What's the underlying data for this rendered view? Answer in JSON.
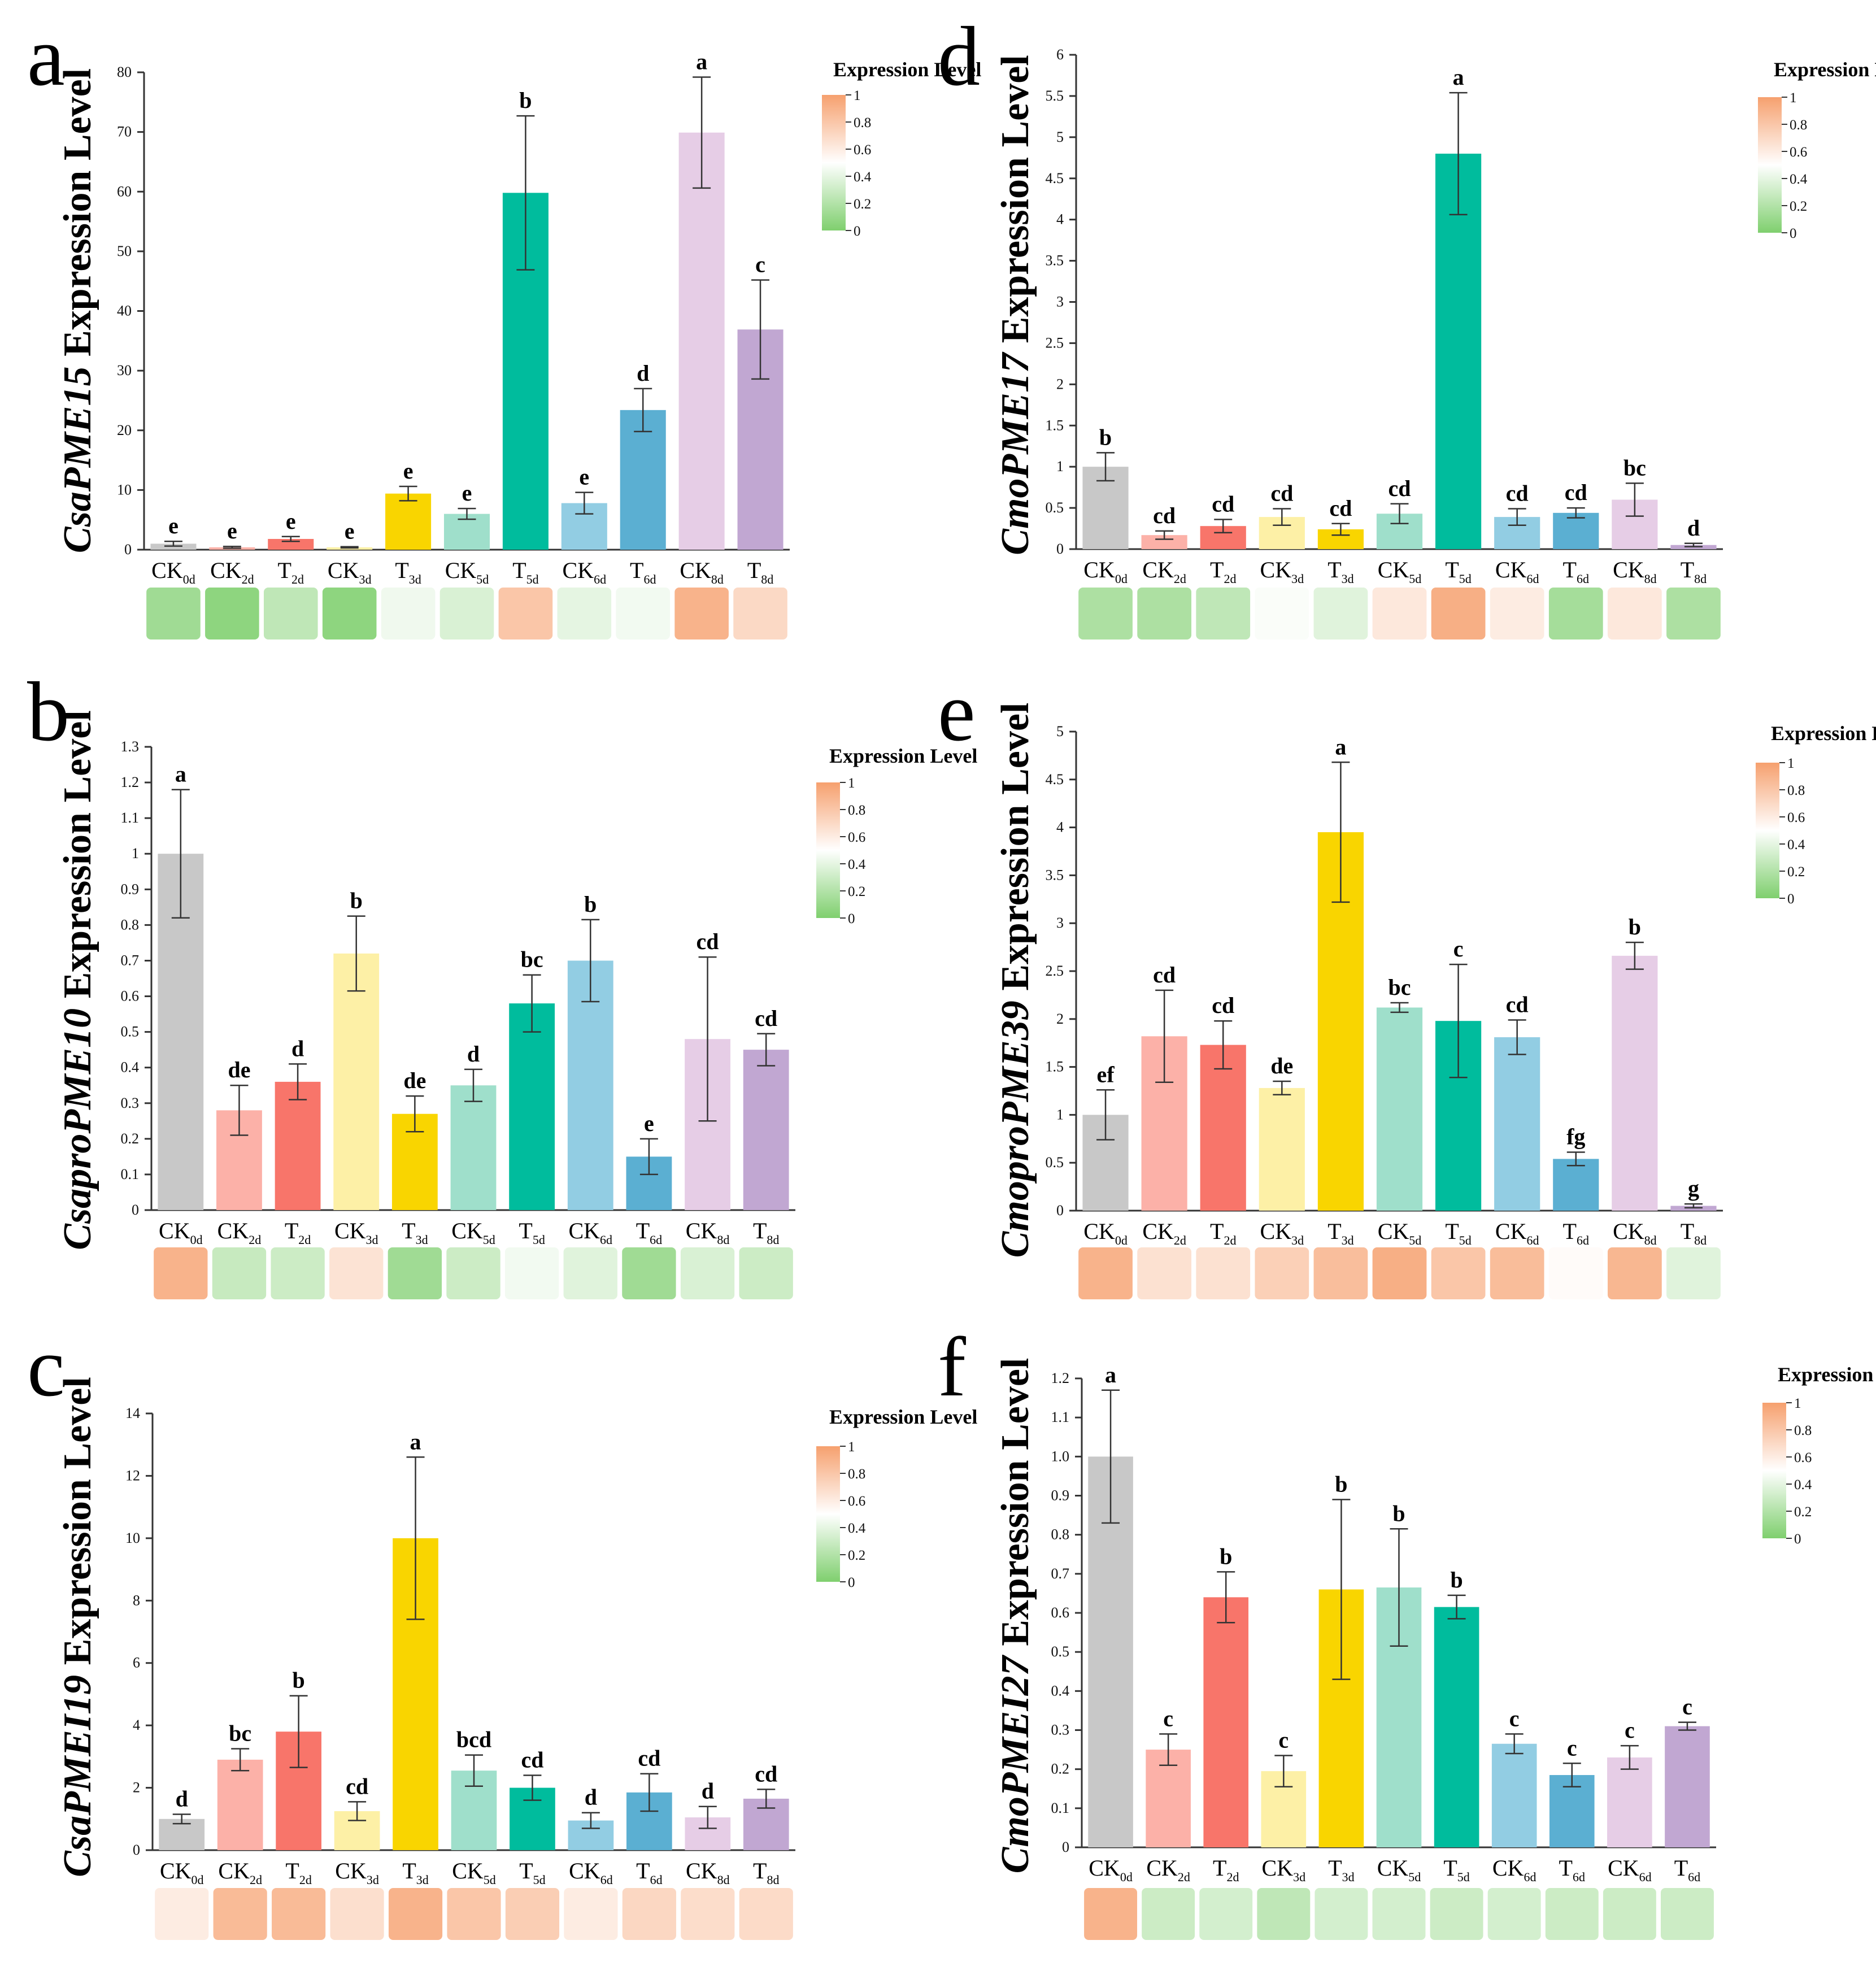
{
  "colors": {
    "bars": [
      "#c8c8c8",
      "#fcb1a8",
      "#f8756a",
      "#fdf0a6",
      "#f9d500",
      "#9fdfcb",
      "#00bc9d",
      "#92cde3",
      "#5bafd2",
      "#e6cde6",
      "#c1a7d2"
    ],
    "heat_low": "#7fcf6e",
    "heat_mid": "#ffffff",
    "heat_high": "#f6a06e",
    "axis": "#333333"
  },
  "legend_scale": {
    "title": "Expression Level",
    "ticks": [
      "1",
      "0.8",
      "0.6",
      "0.4",
      "0.2",
      "0"
    ]
  },
  "chart_data": [
    {
      "panel": "a",
      "type": "bar",
      "ylabel_gene": "CsaPME15",
      "ylabel_suffix": " Expression  Level",
      "ylim": [
        0,
        80
      ],
      "yticks": [
        "0",
        "10",
        "20",
        "30",
        "40",
        "50",
        "60",
        "70",
        "80"
      ],
      "categories": [
        [
          "CK",
          "0d"
        ],
        [
          "CK",
          "2d"
        ],
        [
          "T",
          "2d"
        ],
        [
          "CK",
          "3d"
        ],
        [
          "T",
          "3d"
        ],
        [
          "CK",
          "5d"
        ],
        [
          "T",
          "5d"
        ],
        [
          "CK",
          "6d"
        ],
        [
          "T",
          "6d"
        ],
        [
          "CK",
          "8d"
        ],
        [
          "T",
          "8d"
        ]
      ],
      "values": [
        1.0,
        0.4,
        1.8,
        0.4,
        9.4,
        6.0,
        59.8,
        7.8,
        23.4,
        69.9,
        36.9
      ],
      "errors": [
        0.4,
        0.15,
        0.4,
        0.1,
        1.2,
        0.9,
        12.9,
        1.8,
        3.6,
        9.3,
        8.3
      ],
      "letters": [
        "e",
        "e",
        "e",
        "e",
        "e",
        "e",
        "b",
        "e",
        "d",
        "a",
        "c"
      ],
      "heat": [
        0.13,
        0.06,
        0.25,
        0.06,
        0.44,
        0.35,
        0.8,
        0.4,
        0.45,
        0.9,
        0.7
      ]
    },
    {
      "panel": "b",
      "type": "bar",
      "ylabel_gene": "CsaproPME10",
      "ylabel_suffix": " Expression  Level",
      "ylim": [
        0,
        1.3
      ],
      "yticks": [
        "0",
        "0.1",
        "0.2",
        "0.3",
        "0.4",
        "0.5",
        "0.6",
        "0.7",
        "0.8",
        "0.9",
        "1",
        "1.1",
        "1.2",
        "1.3"
      ],
      "categories": [
        [
          "CK",
          "0d"
        ],
        [
          "CK",
          "2d"
        ],
        [
          "T",
          "2d"
        ],
        [
          "CK",
          "3d"
        ],
        [
          "T",
          "3d"
        ],
        [
          "CK",
          "5d"
        ],
        [
          "T",
          "5d"
        ],
        [
          "CK",
          "6d"
        ],
        [
          "T",
          "6d"
        ],
        [
          "CK",
          "8d"
        ],
        [
          "T",
          "8d"
        ]
      ],
      "values": [
        1.0,
        0.28,
        0.36,
        0.72,
        0.27,
        0.35,
        0.58,
        0.7,
        0.15,
        0.48,
        0.45
      ],
      "errors": [
        0.18,
        0.07,
        0.05,
        0.105,
        0.05,
        0.045,
        0.08,
        0.115,
        0.05,
        0.23,
        0.045
      ],
      "letters": [
        "a",
        "de",
        "d",
        "b",
        "de",
        "d",
        "bc",
        "b",
        "e",
        "cd",
        "cd"
      ],
      "heat": [
        0.9,
        0.28,
        0.3,
        0.65,
        0.13,
        0.3,
        0.45,
        0.38,
        0.13,
        0.35,
        0.3
      ]
    },
    {
      "panel": "c",
      "type": "bar",
      "ylabel_gene": "CsaPMEI19",
      "ylabel_suffix": " Expression  Level",
      "ylim": [
        0,
        14
      ],
      "yticks": [
        "0",
        "2",
        "4",
        "6",
        "8",
        "10",
        "12",
        "14"
      ],
      "categories": [
        [
          "CK",
          "0d"
        ],
        [
          "CK",
          "2d"
        ],
        [
          "T",
          "2d"
        ],
        [
          "CK",
          "3d"
        ],
        [
          "T",
          "3d"
        ],
        [
          "CK",
          "5d"
        ],
        [
          "T",
          "5d"
        ],
        [
          "CK",
          "6d"
        ],
        [
          "T",
          "6d"
        ],
        [
          "CK",
          "8d"
        ],
        [
          "T",
          "8d"
        ]
      ],
      "values": [
        1.0,
        2.9,
        3.8,
        1.25,
        10.0,
        2.55,
        2.0,
        0.95,
        1.85,
        1.05,
        1.65
      ],
      "errors": [
        0.15,
        0.35,
        1.15,
        0.3,
        2.6,
        0.5,
        0.4,
        0.25,
        0.6,
        0.35,
        0.3
      ],
      "letters": [
        "d",
        "bc",
        "b",
        "cd",
        "a",
        "bcd",
        "cd",
        "d",
        "cd",
        "d",
        "cd"
      ],
      "heat": [
        0.6,
        0.86,
        0.86,
        0.67,
        0.9,
        0.8,
        0.76,
        0.6,
        0.71,
        0.68,
        0.69
      ]
    },
    {
      "panel": "d",
      "type": "bar",
      "ylabel_gene": "CmoPME17",
      "ylabel_suffix": " Expression  Level",
      "ylim": [
        0,
        6
      ],
      "yticks": [
        "0",
        "0.5",
        "1",
        "1.5",
        "2",
        "2.5",
        "3",
        "3.5",
        "4",
        "4.5",
        "5",
        "5.5",
        "6"
      ],
      "categories": [
        [
          "CK",
          "0d"
        ],
        [
          "CK",
          "2d"
        ],
        [
          "T",
          "2d"
        ],
        [
          "CK",
          "3d"
        ],
        [
          "T",
          "3d"
        ],
        [
          "CK",
          "5d"
        ],
        [
          "T",
          "5d"
        ],
        [
          "CK",
          "6d"
        ],
        [
          "T",
          "6d"
        ],
        [
          "CK",
          "8d"
        ],
        [
          "T",
          "8d"
        ]
      ],
      "values": [
        1.0,
        0.17,
        0.28,
        0.39,
        0.24,
        0.43,
        4.8,
        0.39,
        0.44,
        0.6,
        0.05
      ],
      "errors": [
        0.17,
        0.05,
        0.08,
        0.1,
        0.07,
        0.12,
        0.74,
        0.1,
        0.06,
        0.2,
        0.02
      ],
      "letters": [
        "b",
        "cd",
        "cd",
        "cd",
        "cd",
        "cd",
        "a",
        "cd",
        "cd",
        "bc",
        "d"
      ],
      "heat": [
        0.18,
        0.18,
        0.25,
        0.48,
        0.38,
        0.62,
        0.92,
        0.6,
        0.15,
        0.62,
        0.18
      ]
    },
    {
      "panel": "e",
      "type": "bar",
      "ylabel_gene": "CmoproPME39",
      "ylabel_suffix": " Expression  Level",
      "ylim": [
        0,
        5
      ],
      "yticks": [
        "0",
        "0.5",
        "1",
        "1.5",
        "2",
        "2.5",
        "3",
        "3.5",
        "4",
        "4.5",
        "5"
      ],
      "categories": [
        [
          "CK",
          "0d"
        ],
        [
          "CK",
          "2d"
        ],
        [
          "T",
          "2d"
        ],
        [
          "CK",
          "3d"
        ],
        [
          "T",
          "3d"
        ],
        [
          "CK",
          "5d"
        ],
        [
          "T",
          "5d"
        ],
        [
          "CK",
          "6d"
        ],
        [
          "T",
          "6d"
        ],
        [
          "CK",
          "8d"
        ],
        [
          "T",
          "8d"
        ]
      ],
      "values": [
        1.0,
        1.82,
        1.73,
        1.28,
        3.95,
        2.12,
        1.98,
        1.81,
        0.54,
        2.66,
        0.05
      ],
      "errors": [
        0.26,
        0.48,
        0.25,
        0.07,
        0.73,
        0.05,
        0.59,
        0.18,
        0.07,
        0.14,
        0.02
      ],
      "letters": [
        "ef",
        "cd",
        "cd",
        "de",
        "a",
        "bc",
        "c",
        "cd",
        "fg",
        "b",
        "g"
      ],
      "heat": [
        0.9,
        0.66,
        0.66,
        0.75,
        0.84,
        0.92,
        0.8,
        0.85,
        0.52,
        0.88,
        0.38
      ]
    },
    {
      "panel": "f",
      "type": "bar",
      "ylabel_gene": "CmoPMEI27",
      "ylabel_suffix": " Expression  Level",
      "ylim": [
        0,
        1.2
      ],
      "yticks": [
        "0",
        "0.1",
        "0.2",
        "0.3",
        "0.4",
        "0.5",
        "0.6",
        "0.7",
        "0.8",
        "0.9",
        "1.0",
        "1.1",
        "1.2"
      ],
      "categories": [
        [
          "CK",
          "0d"
        ],
        [
          "CK",
          "2d"
        ],
        [
          "T",
          "2d"
        ],
        [
          "CK",
          "3d"
        ],
        [
          "T",
          "3d"
        ],
        [
          "CK",
          "5d"
        ],
        [
          "T",
          "5d"
        ],
        [
          "CK",
          "6d"
        ],
        [
          "T",
          "6d"
        ],
        [
          "CK",
          "6d"
        ],
        [
          "T",
          "6d"
        ]
      ],
      "values": [
        1.0,
        0.25,
        0.64,
        0.195,
        0.66,
        0.665,
        0.615,
        0.265,
        0.185,
        0.23,
        0.31
      ],
      "errors": [
        0.17,
        0.04,
        0.065,
        0.04,
        0.23,
        0.15,
        0.03,
        0.025,
        0.03,
        0.03,
        0.01
      ],
      "letters": [
        "a",
        "c",
        "b",
        "c",
        "b",
        "b",
        "b",
        "c",
        "c",
        "c",
        "c"
      ],
      "heat": [
        0.9,
        0.3,
        0.33,
        0.25,
        0.33,
        0.33,
        0.3,
        0.33,
        0.3,
        0.3,
        0.3
      ]
    }
  ]
}
